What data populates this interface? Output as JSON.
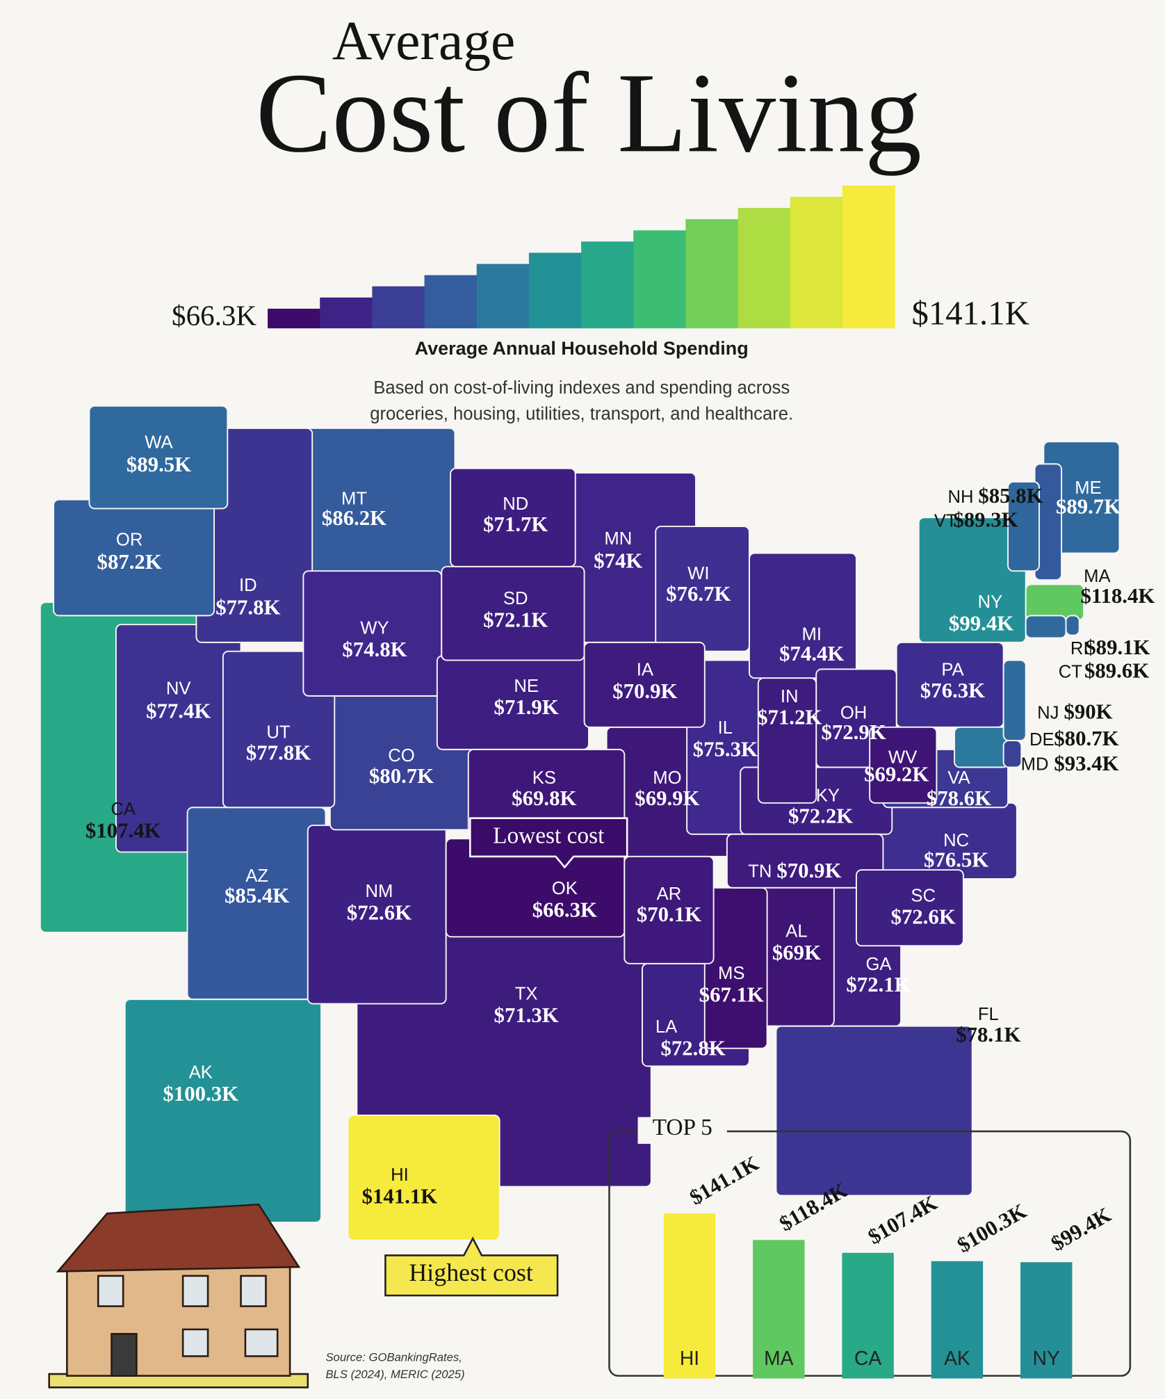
{
  "chart_data": [
    {
      "type": "choropleth",
      "supertitle": "Average",
      "title": "Cost of Living",
      "colorbar_title": "Average Annual Household Spending",
      "subtitle": [
        "Based on cost-of-living indexes and spending across",
        "groceries, housing, utilities, transport, and healthcare."
      ],
      "colorticks": [
        {
          "value": 66.3,
          "label": "$66.3K"
        },
        {
          "value": 141.1,
          "label": "$141.1K"
        }
      ],
      "colormap": [
        "#3d0c6b",
        "#3f2a8f",
        "#35569c",
        "#2b7d9e",
        "#1f9e91",
        "#36ba78",
        "#7fd34e",
        "#d4e43a",
        "#f6ea3c"
      ],
      "annotations": [
        "Lowest cost",
        "Highest cost"
      ],
      "source": [
        "Source: GOBankingRates,",
        "BLS (2024), MERIC (2025)"
      ],
      "states": [
        {
          "code": "WA",
          "value": 89.5,
          "value_label": "$89.5K"
        },
        {
          "code": "OR",
          "value": 87.2,
          "value_label": "$87.2K"
        },
        {
          "code": "CA",
          "value": 107.4,
          "value_label": "$107.4K"
        },
        {
          "code": "NV",
          "value": 77.4,
          "value_label": "$77.4K"
        },
        {
          "code": "ID",
          "value": 77.8,
          "value_label": "$77.8K"
        },
        {
          "code": "MT",
          "value": 86.2,
          "value_label": "$86.2K"
        },
        {
          "code": "WY",
          "value": 74.8,
          "value_label": "$74.8K"
        },
        {
          "code": "UT",
          "value": 77.8,
          "value_label": "$77.8K"
        },
        {
          "code": "AZ",
          "value": 85.4,
          "value_label": "$85.4K"
        },
        {
          "code": "CO",
          "value": 80.7,
          "value_label": "$80.7K"
        },
        {
          "code": "NM",
          "value": 72.6,
          "value_label": "$72.6K"
        },
        {
          "code": "ND",
          "value": 71.7,
          "value_label": "$71.7K"
        },
        {
          "code": "SD",
          "value": 72.1,
          "value_label": "$72.1K"
        },
        {
          "code": "NE",
          "value": 71.9,
          "value_label": "$71.9K"
        },
        {
          "code": "KS",
          "value": 69.8,
          "value_label": "$69.8K"
        },
        {
          "code": "OK",
          "value": 66.3,
          "value_label": "$66.3K"
        },
        {
          "code": "TX",
          "value": 71.3,
          "value_label": "$71.3K"
        },
        {
          "code": "MN",
          "value": 74,
          "value_label": "$74K"
        },
        {
          "code": "IA",
          "value": 70.9,
          "value_label": "$70.9K"
        },
        {
          "code": "MO",
          "value": 69.9,
          "value_label": "$69.9K"
        },
        {
          "code": "AR",
          "value": 70.1,
          "value_label": "$70.1K"
        },
        {
          "code": "LA",
          "value": 72.8,
          "value_label": "$72.8K"
        },
        {
          "code": "WI",
          "value": 76.7,
          "value_label": "$76.7K"
        },
        {
          "code": "IL",
          "value": 75.3,
          "value_label": "$75.3K"
        },
        {
          "code": "MI",
          "value": 74.4,
          "value_label": "$74.4K"
        },
        {
          "code": "IN",
          "value": 71.2,
          "value_label": "$71.2K"
        },
        {
          "code": "OH",
          "value": 72.9,
          "value_label": "$72.9K"
        },
        {
          "code": "KY",
          "value": 72.2,
          "value_label": "$72.2K"
        },
        {
          "code": "TN",
          "value": 70.9,
          "value_label": "$70.9K"
        },
        {
          "code": "MS",
          "value": 67.1,
          "value_label": "$67.1K"
        },
        {
          "code": "AL",
          "value": 69,
          "value_label": "$69K"
        },
        {
          "code": "GA",
          "value": 72.1,
          "value_label": "$72.1K"
        },
        {
          "code": "FL",
          "value": 78.1,
          "value_label": "$78.1K"
        },
        {
          "code": "SC",
          "value": 72.6,
          "value_label": "$72.6K"
        },
        {
          "code": "NC",
          "value": 76.5,
          "value_label": "$76.5K"
        },
        {
          "code": "VA",
          "value": 78.6,
          "value_label": "$78.6K"
        },
        {
          "code": "WV",
          "value": 69.2,
          "value_label": "$69.2K"
        },
        {
          "code": "PA",
          "value": 76.3,
          "value_label": "$76.3K"
        },
        {
          "code": "NY",
          "value": 99.4,
          "value_label": "$99.4K"
        },
        {
          "code": "VT",
          "value": 89.3,
          "value_label": "$89.3K"
        },
        {
          "code": "NH",
          "value": 85.8,
          "value_label": "$85.8K"
        },
        {
          "code": "ME",
          "value": 89.7,
          "value_label": "$89.7K"
        },
        {
          "code": "MA",
          "value": 118.4,
          "value_label": "$118.4K"
        },
        {
          "code": "CT",
          "value": 89.6,
          "value_label": "$89.6K"
        },
        {
          "code": "RI",
          "value": 89.1,
          "value_label": "$89.1K"
        },
        {
          "code": "NJ",
          "value": 90,
          "value_label": "$90K"
        },
        {
          "code": "DE",
          "value": 80.7,
          "value_label": "$80.7K"
        },
        {
          "code": "MD",
          "value": 93.4,
          "value_label": "$93.4K"
        },
        {
          "code": "AK",
          "value": 100.3,
          "value_label": "$100.3K"
        },
        {
          "code": "HI",
          "value": 141.1,
          "value_label": "$141.1K"
        }
      ]
    },
    {
      "type": "bar",
      "title": "TOP 5",
      "categories": [
        "HI",
        "MA",
        "CA",
        "AK",
        "NY"
      ],
      "values": [
        141.1,
        118.4,
        107.4,
        100.3,
        99.4
      ],
      "value_labels": [
        "$141.1K",
        "$118.4K",
        "$107.4K",
        "$100.3K",
        "$99.4K"
      ]
    }
  ]
}
